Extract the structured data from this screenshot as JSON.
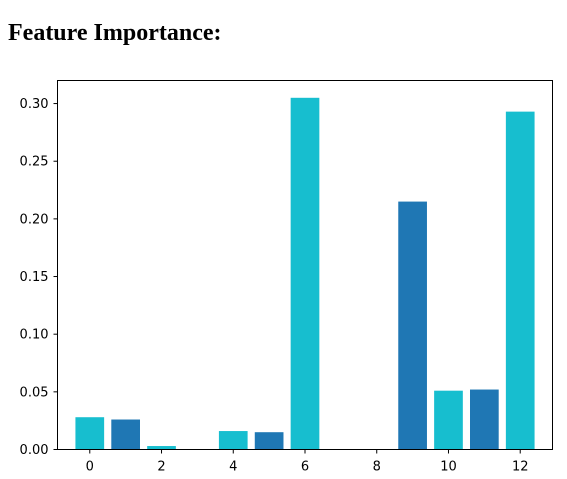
{
  "page": {
    "heading": "Feature Importance:"
  },
  "chart_data": {
    "type": "bar",
    "title": "",
    "xlabel": "",
    "ylabel": "",
    "categories": [
      0,
      1,
      2,
      3,
      4,
      5,
      6,
      7,
      8,
      9,
      10,
      11,
      12
    ],
    "values": [
      0.028,
      0.026,
      0.003,
      0.0,
      0.016,
      0.015,
      0.305,
      0.0,
      0.0,
      0.215,
      0.051,
      0.052,
      0.293
    ],
    "bar_colors": [
      "#17becf",
      "#1f77b4",
      "#17becf",
      "#1f77b4",
      "#17becf",
      "#1f77b4",
      "#17becf",
      "#1f77b4",
      "#17becf",
      "#1f77b4",
      "#17becf",
      "#1f77b4",
      "#17becf"
    ],
    "ylim": [
      0,
      0.32
    ],
    "xlim": [
      -0.9,
      12.9
    ],
    "xticks": [
      0,
      2,
      4,
      6,
      8,
      10,
      12
    ],
    "yticks": [
      0.0,
      0.05,
      0.1,
      0.15,
      0.2,
      0.25,
      0.3
    ],
    "ytick_labels": [
      "0.00",
      "0.05",
      "0.10",
      "0.15",
      "0.20",
      "0.25",
      "0.30"
    ],
    "grid": false,
    "legend": false
  }
}
